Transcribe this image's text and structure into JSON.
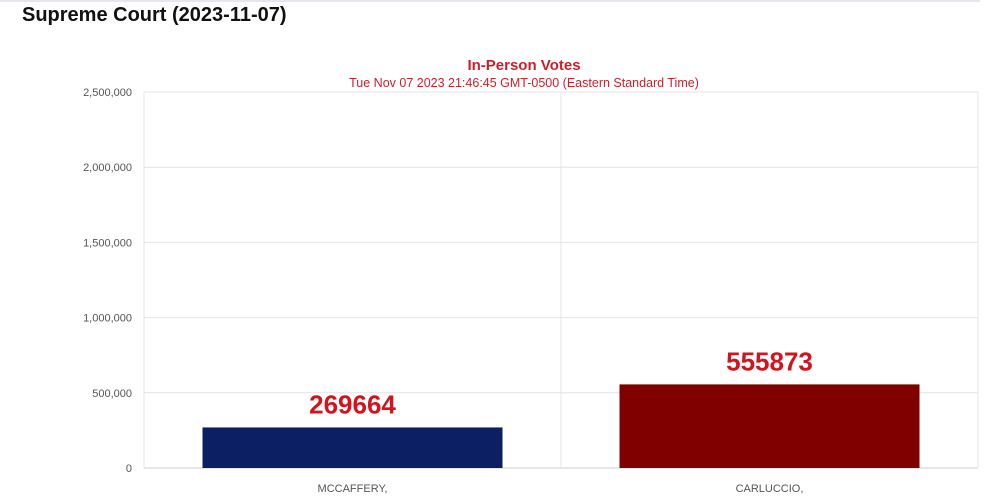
{
  "page": {
    "heading": "Supreme Court (2023-11-07)"
  },
  "colors": {
    "title": "#cc1f2a",
    "grid": "#e4e4e4",
    "axis": "#cfcfcf",
    "series": [
      "#0d1f63",
      "#800000"
    ],
    "data_label": "#d3141c"
  },
  "chart_data": {
    "type": "bar",
    "title": "In-Person Votes",
    "subtitle": "Tue Nov 07 2023 21:46:45 GMT-0500 (Eastern Standard Time)",
    "xlabel": "",
    "ylabel": "",
    "categories": [
      "MCCAFFERY,",
      "CARLUCCIO,"
    ],
    "values": [
      269664,
      555873
    ],
    "data_labels": [
      "269664",
      "555873"
    ],
    "ylim": [
      0,
      2500000
    ],
    "yticks": [
      0,
      500000,
      1000000,
      1500000,
      2000000,
      2500000
    ],
    "ytick_labels": [
      "0",
      "500,000",
      "1,000,000",
      "1,500,000",
      "2,000,000",
      "2,500,000"
    ],
    "grid": true,
    "legend": "none"
  }
}
